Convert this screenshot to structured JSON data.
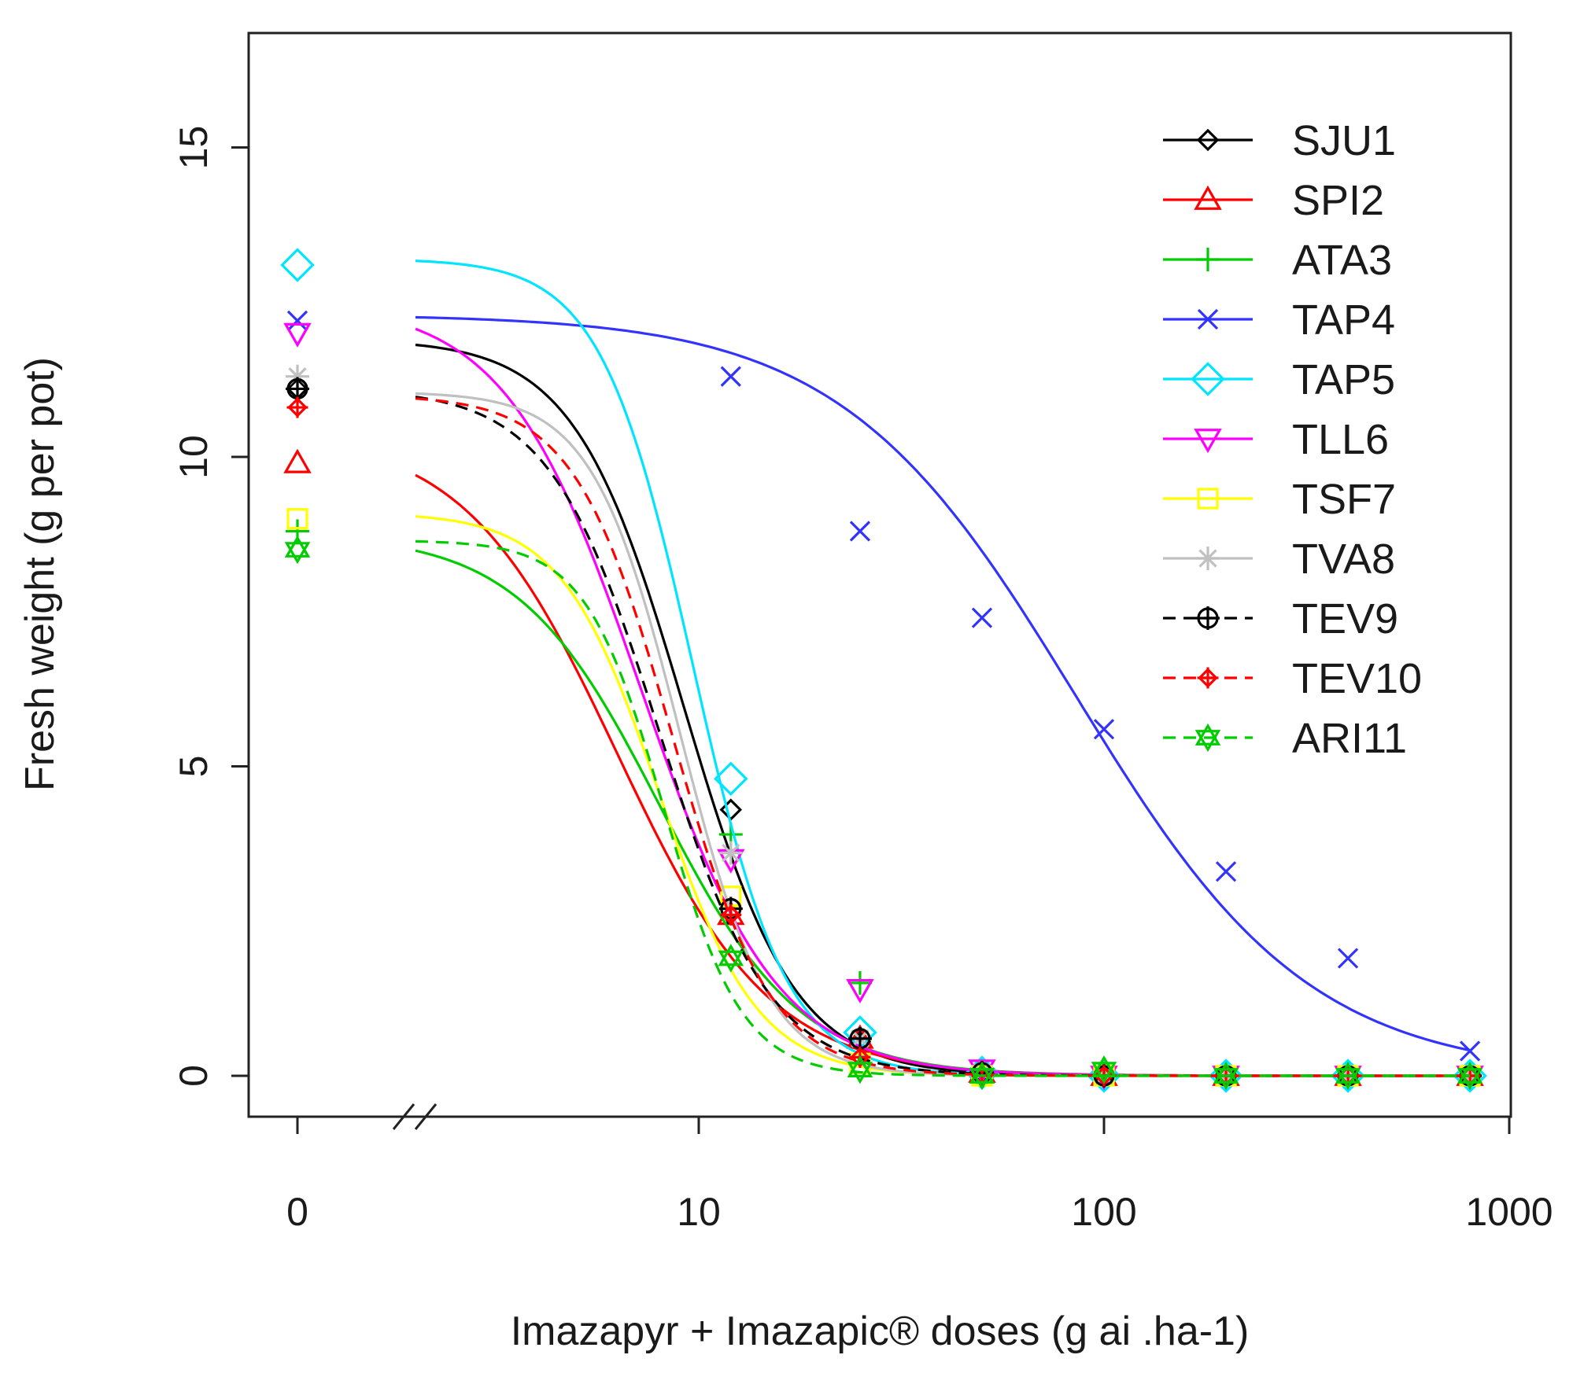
{
  "chart_data": {
    "type": "line",
    "xlabel": "Imazapyr + Imazapic® doses (g ai .ha-1)",
    "ylabel": "Fresh weight (g per pot)",
    "xscale": "log",
    "xlim": [
      1.5,
      1000
    ],
    "ylim": [
      -0.65,
      17.0
    ],
    "x_ticks": [
      {
        "value": 0,
        "label": "0",
        "position": "control"
      },
      {
        "value": 10,
        "label": "10"
      },
      {
        "value": 100,
        "label": "100"
      },
      {
        "value": 1000,
        "label": "1000"
      }
    ],
    "y_ticks": [
      {
        "value": 0,
        "label": "0"
      },
      {
        "value": 5,
        "label": "5"
      },
      {
        "value": 10,
        "label": "10"
      },
      {
        "value": 15,
        "label": "15"
      }
    ],
    "axis_break": "x between 0 and first dose",
    "legend_position": "top-right",
    "dose_points": [
      12,
      25,
      50,
      100,
      200,
      400,
      800
    ],
    "series": [
      {
        "name": "SJU1",
        "color": "#000000",
        "dash": "solid",
        "marker": "diamond-small",
        "control": 11.1,
        "curve": {
          "c": 0,
          "d": 11.9,
          "e": 9.2,
          "b": 3.2
        },
        "points": [
          [
            12,
            4.3
          ],
          [
            25,
            0.55
          ],
          [
            50,
            0.05
          ],
          [
            100,
            0.0
          ],
          [
            200,
            0.0
          ],
          [
            400,
            0.0
          ],
          [
            800,
            0.0
          ]
        ]
      },
      {
        "name": "SPI2",
        "color": "#ff0000",
        "dash": "solid",
        "marker": "triangle-up",
        "control": 9.9,
        "curve": {
          "c": 0,
          "d": 10.4,
          "e": 6.3,
          "b": 2.3
        },
        "points": [
          [
            12,
            2.6
          ],
          [
            25,
            0.6
          ],
          [
            50,
            0.05
          ],
          [
            100,
            0.0
          ],
          [
            200,
            0.0
          ],
          [
            400,
            0.0
          ],
          [
            800,
            0.0
          ]
        ]
      },
      {
        "name": "ATA3",
        "color": "#00cc00",
        "dash": "solid",
        "marker": "plus",
        "control": 8.8,
        "curve": {
          "c": 0,
          "d": 8.75,
          "e": 8.0,
          "b": 2.5
        },
        "points": [
          [
            12,
            3.9
          ],
          [
            25,
            1.5
          ],
          [
            50,
            0.1
          ],
          [
            100,
            0.05
          ],
          [
            200,
            0.0
          ],
          [
            400,
            0.0
          ],
          [
            800,
            0.0
          ]
        ]
      },
      {
        "name": "TAP4",
        "color": "#3333ff",
        "dash": "solid",
        "marker": "cross",
        "control": 12.2,
        "curve": {
          "c": 0,
          "d": 12.3,
          "e": 85.0,
          "b": 1.5
        },
        "points": [
          [
            12,
            11.3
          ],
          [
            25,
            8.8
          ],
          [
            50,
            7.4
          ],
          [
            100,
            5.6
          ],
          [
            200,
            3.3
          ],
          [
            400,
            1.9
          ],
          [
            800,
            0.4
          ]
        ]
      },
      {
        "name": "TAP5",
        "color": "#00e5ff",
        "dash": "solid",
        "marker": "diamond",
        "control": 13.1,
        "curve": {
          "c": 0,
          "d": 13.2,
          "e": 9.7,
          "b": 3.8
        },
        "points": [
          [
            12,
            4.8
          ],
          [
            25,
            0.7
          ],
          [
            50,
            0.05
          ],
          [
            100,
            0.0
          ],
          [
            200,
            0.0
          ],
          [
            400,
            0.0
          ],
          [
            800,
            0.0
          ]
        ]
      },
      {
        "name": "TLL6",
        "color": "#ff00ff",
        "dash": "solid",
        "marker": "triangle-down",
        "control": 12.0,
        "curve": {
          "c": 0,
          "d": 12.5,
          "e": 7.2,
          "b": 2.6
        },
        "points": [
          [
            12,
            3.5
          ],
          [
            25,
            1.4
          ],
          [
            50,
            0.1
          ],
          [
            100,
            0.0
          ],
          [
            200,
            0.0
          ],
          [
            400,
            0.0
          ],
          [
            800,
            0.0
          ]
        ]
      },
      {
        "name": "TSF7",
        "color": "#ffff00",
        "dash": "solid",
        "marker": "square",
        "control": 9.0,
        "curve": {
          "c": 0,
          "d": 9.1,
          "e": 8.0,
          "b": 3.6
        },
        "points": [
          [
            12,
            2.9
          ],
          [
            25,
            0.2
          ],
          [
            50,
            0.0
          ],
          [
            100,
            0.0
          ],
          [
            200,
            0.0
          ],
          [
            400,
            0.0
          ],
          [
            800,
            0.0
          ]
        ]
      },
      {
        "name": "TVA8",
        "color": "#c0c0c0",
        "dash": "solid",
        "marker": "asterisk",
        "control": 11.3,
        "curve": {
          "c": 0,
          "d": 11.05,
          "e": 9.0,
          "b": 4.0
        },
        "points": [
          [
            12,
            3.6
          ],
          [
            25,
            0.6
          ],
          [
            50,
            0.05
          ],
          [
            100,
            0.0
          ],
          [
            200,
            0.0
          ],
          [
            400,
            0.0
          ],
          [
            800,
            0.0
          ]
        ]
      },
      {
        "name": "TEV9",
        "color": "#000000",
        "dash": "dashed",
        "marker": "circle-plus",
        "control": 11.1,
        "curve": {
          "c": 0,
          "d": 11.1,
          "e": 8.0,
          "b": 3.2
        },
        "points": [
          [
            12,
            2.7
          ],
          [
            25,
            0.6
          ],
          [
            50,
            0.05
          ],
          [
            100,
            0.0
          ],
          [
            200,
            0.0
          ],
          [
            400,
            0.0
          ],
          [
            800,
            0.0
          ]
        ]
      },
      {
        "name": "TEV10",
        "color": "#ff0000",
        "dash": "dashed",
        "marker": "diamond-plus",
        "control": 10.8,
        "curve": {
          "c": 0,
          "d": 11.0,
          "e": 8.6,
          "b": 3.6
        },
        "points": [
          [
            12,
            2.6
          ],
          [
            25,
            0.3
          ],
          [
            50,
            0.0
          ],
          [
            100,
            0.0
          ],
          [
            200,
            0.0
          ],
          [
            400,
            0.0
          ],
          [
            800,
            0.0
          ]
        ]
      },
      {
        "name": "ARI11",
        "color": "#00cc00",
        "dash": "dashed",
        "marker": "hexagram",
        "control": 8.5,
        "curve": {
          "c": 0,
          "d": 8.65,
          "e": 8.2,
          "b": 4.5
        },
        "points": [
          [
            12,
            1.9
          ],
          [
            25,
            0.1
          ],
          [
            50,
            0.0
          ],
          [
            100,
            0.1
          ],
          [
            200,
            0.0
          ],
          [
            400,
            0.0
          ],
          [
            800,
            0.0
          ]
        ]
      }
    ]
  }
}
